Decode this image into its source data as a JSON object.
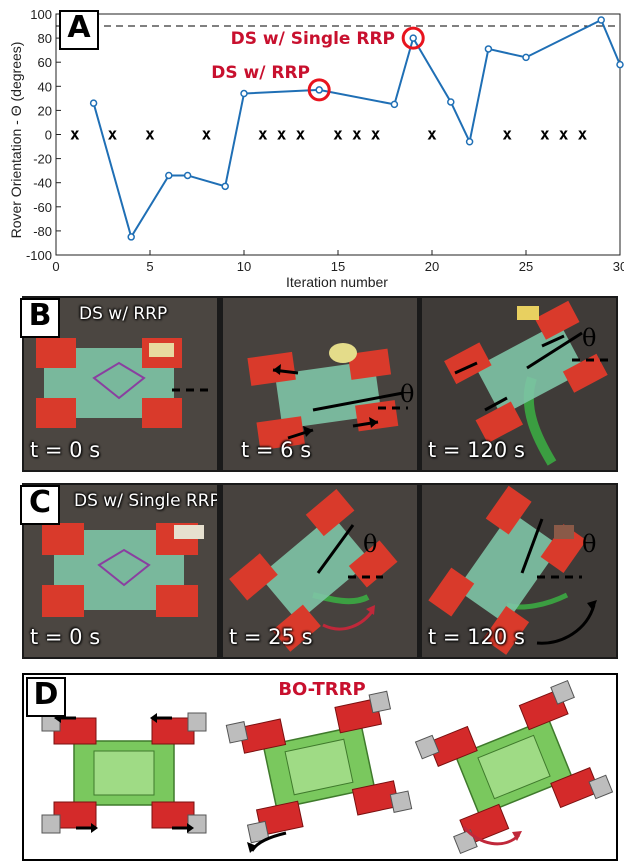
{
  "panelA": {
    "label": "A",
    "annotations": [
      {
        "text": "DS w/ Single RRP",
        "x": 19,
        "y": 80
      },
      {
        "text": "DS w/ RRP",
        "x": 14,
        "y": 37
      }
    ],
    "marker_symbol": "x",
    "colors": {
      "line": "#1f6fb5",
      "highlight": "#e8141e",
      "annotation": "#c8102e"
    }
  },
  "chart_data": {
    "type": "line",
    "xlabel": "Iteration number",
    "ylabel": "Rover Orientation - Θ (degrees)",
    "xlim": [
      0,
      30
    ],
    "ylim": [
      -100,
      100
    ],
    "xticks": [
      0,
      5,
      10,
      15,
      20,
      25,
      30
    ],
    "yticks": [
      -100,
      -80,
      -60,
      -40,
      -20,
      0,
      20,
      40,
      60,
      80,
      100
    ],
    "reference_line": {
      "y": 90,
      "style": "dashed"
    },
    "series": [
      {
        "x": [
          2,
          4,
          6,
          7,
          9,
          10,
          14,
          18,
          19,
          21,
          22,
          23,
          25,
          29,
          30
        ],
        "y": [
          26,
          -85,
          -34,
          -34,
          -43,
          34,
          37,
          25,
          80,
          27,
          -6,
          71,
          64,
          95,
          58
        ]
      }
    ],
    "x_markers": [
      1,
      3,
      5,
      8,
      11,
      12,
      13,
      15,
      16,
      17,
      20,
      24,
      26,
      27,
      28
    ],
    "highlighted_points": [
      {
        "x": 14,
        "y": 37
      },
      {
        "x": 19,
        "y": 80
      }
    ]
  },
  "panelB": {
    "label": "B",
    "caption": "DS w/ RRP",
    "frames": [
      {
        "time": "t = 0 s"
      },
      {
        "time": "t = 6 s",
        "angle_symbol": "θ"
      },
      {
        "time": "t = 120 s",
        "angle_symbol": "θ"
      }
    ]
  },
  "panelC": {
    "label": "C",
    "caption": "DS w/ Single RRP",
    "frames": [
      {
        "time": "t = 0 s"
      },
      {
        "time": "t = 25 s",
        "angle_symbol": "θ"
      },
      {
        "time": "t = 120 s",
        "angle_symbol": "θ"
      }
    ]
  },
  "panelD": {
    "label": "D",
    "title": "BO-TRRP"
  }
}
